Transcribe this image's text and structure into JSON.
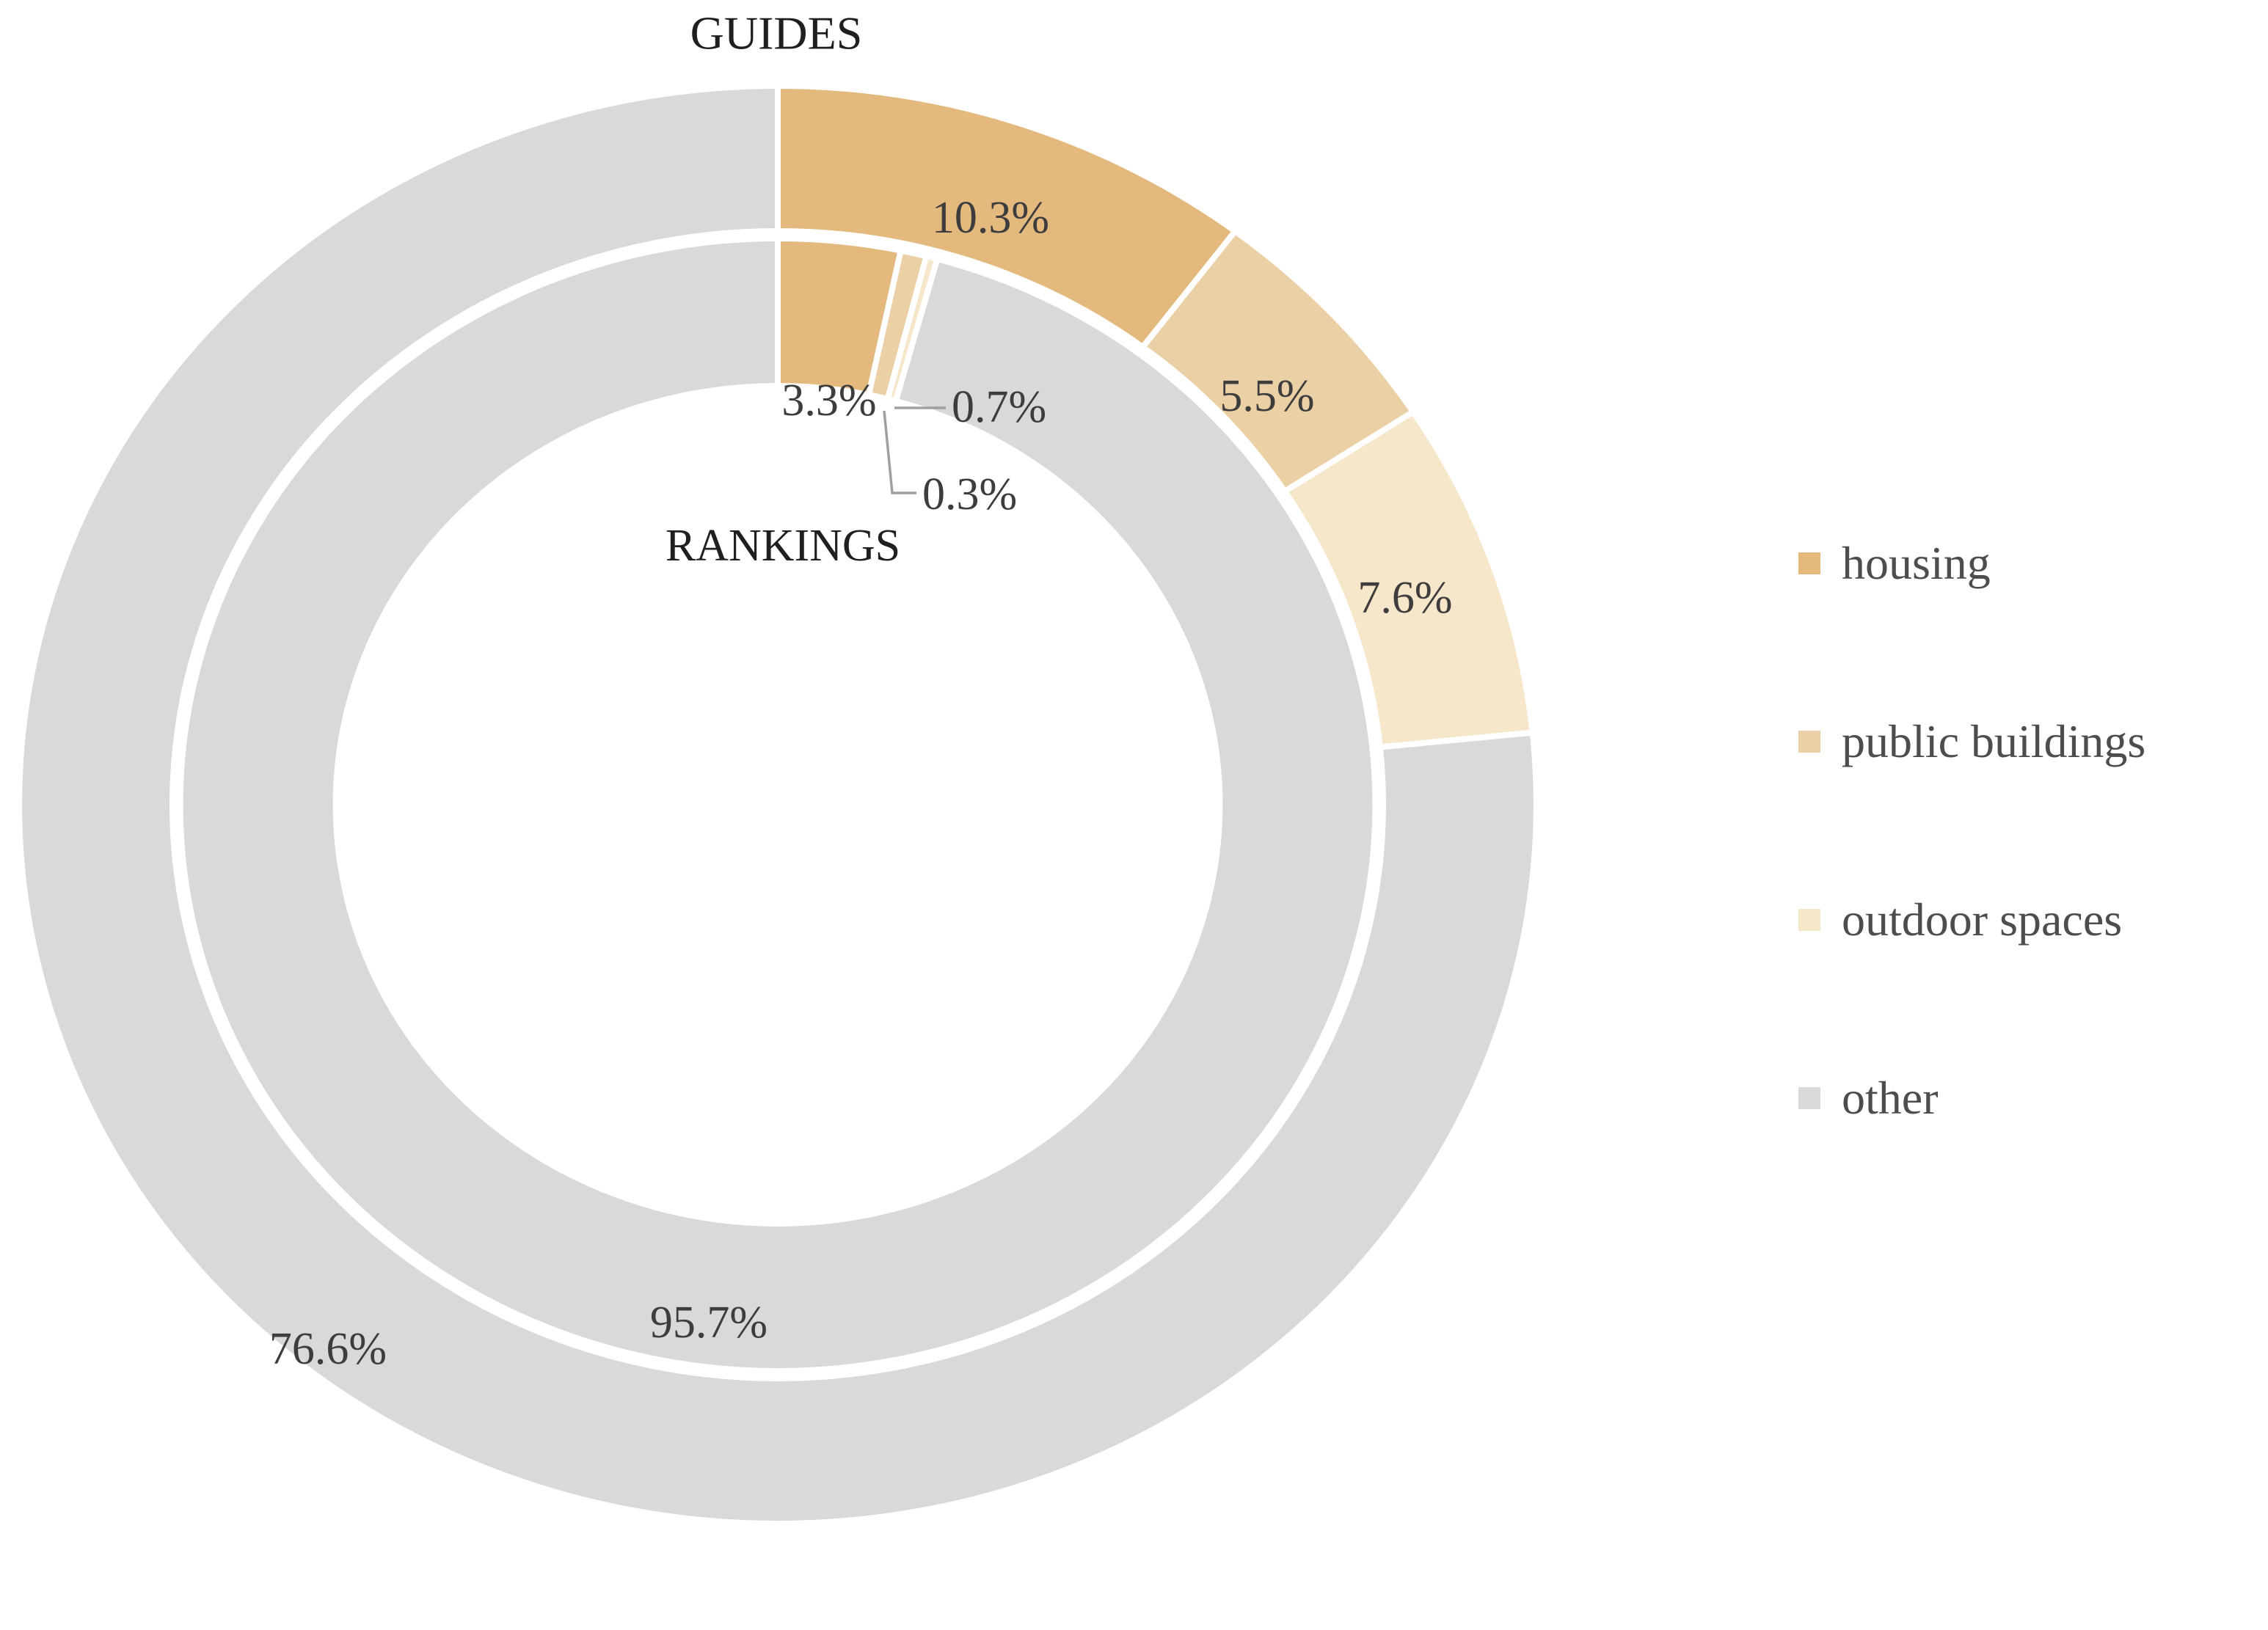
{
  "chart_data": {
    "type": "donut",
    "title": "",
    "rings": [
      {
        "name": "GUIDES",
        "position": "outer",
        "labels": [
          "10.3%",
          "5.5%",
          "7.6%",
          "76.6%"
        ],
        "values": [
          10.3,
          5.5,
          7.6,
          76.6
        ]
      },
      {
        "name": "RANKINGS",
        "position": "inner",
        "labels": [
          "3.3%",
          "0.7%",
          "0.3%",
          "95.7%"
        ],
        "values": [
          3.3,
          0.7,
          0.3,
          95.7
        ]
      }
    ],
    "categories": [
      "housing",
      "public buildings",
      "outdoor spaces",
      "other"
    ],
    "colors": [
      "#e3b97e",
      "#ebd0a6",
      "#f6e7cb",
      "#d9d9d9"
    ],
    "slice_border_color": "#ffffff",
    "label_color": "#3d3d3d",
    "ring_title_color": "#1f1f1f",
    "legend_text_color": "#4d4d4d",
    "leader_line_color": "#a0a0a0",
    "start_angle_deg": 0,
    "direction": "clockwise",
    "legend_position": "right",
    "grid": false
  }
}
